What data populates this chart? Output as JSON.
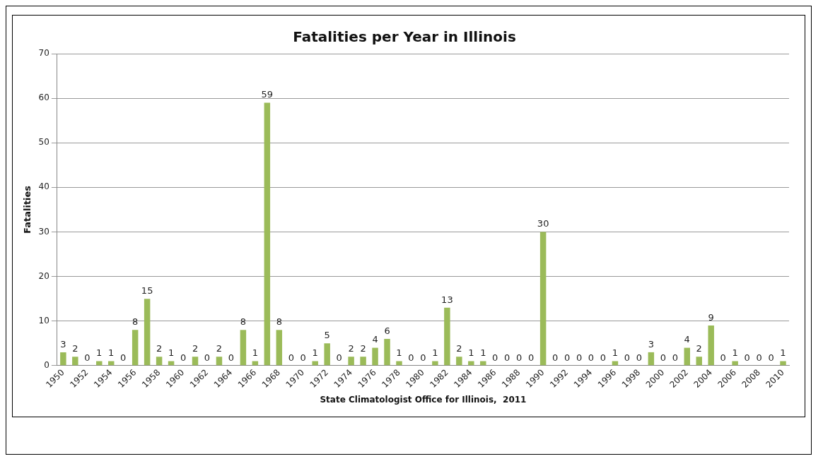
{
  "chart_data": {
    "type": "bar",
    "title": "Fatalities per Year in Illinois",
    "xlabel": "State Climatologist Office for Illinois,  2011",
    "ylabel": "Fatalities",
    "categories": [
      "1950",
      null,
      "1952",
      null,
      "1954",
      null,
      "1956",
      null,
      "1958",
      null,
      "1960",
      null,
      "1962",
      null,
      "1964",
      null,
      "1966",
      null,
      "1968",
      null,
      "1970",
      null,
      "1972",
      null,
      "1974",
      null,
      "1976",
      null,
      "1978",
      null,
      "1980",
      null,
      "1982",
      null,
      "1984",
      null,
      "1986",
      null,
      "1988",
      null,
      "1990",
      null,
      "1992",
      null,
      "1994",
      null,
      "1996",
      null,
      "1998",
      null,
      "2000",
      null,
      "2002",
      null,
      "2004",
      null,
      "2006",
      null,
      "2008",
      null,
      "2010"
    ],
    "values": [
      3,
      2,
      0,
      1,
      1,
      0,
      8,
      15,
      2,
      1,
      0,
      2,
      0,
      2,
      0,
      8,
      1,
      59,
      8,
      0,
      0,
      1,
      5,
      0,
      2,
      2,
      4,
      6,
      1,
      0,
      0,
      1,
      13,
      2,
      1,
      1,
      0,
      0,
      0,
      0,
      30,
      0,
      0,
      0,
      0,
      0,
      1,
      0,
      0,
      3,
      0,
      0,
      4,
      2,
      9,
      0,
      1,
      0,
      0,
      0,
      1
    ],
    "color": "#9bbb59",
    "ylim": [
      0,
      70
    ],
    "yticks": [
      0,
      10,
      20,
      30,
      40,
      50,
      60,
      70
    ],
    "grid": "y",
    "data_labels": true
  }
}
